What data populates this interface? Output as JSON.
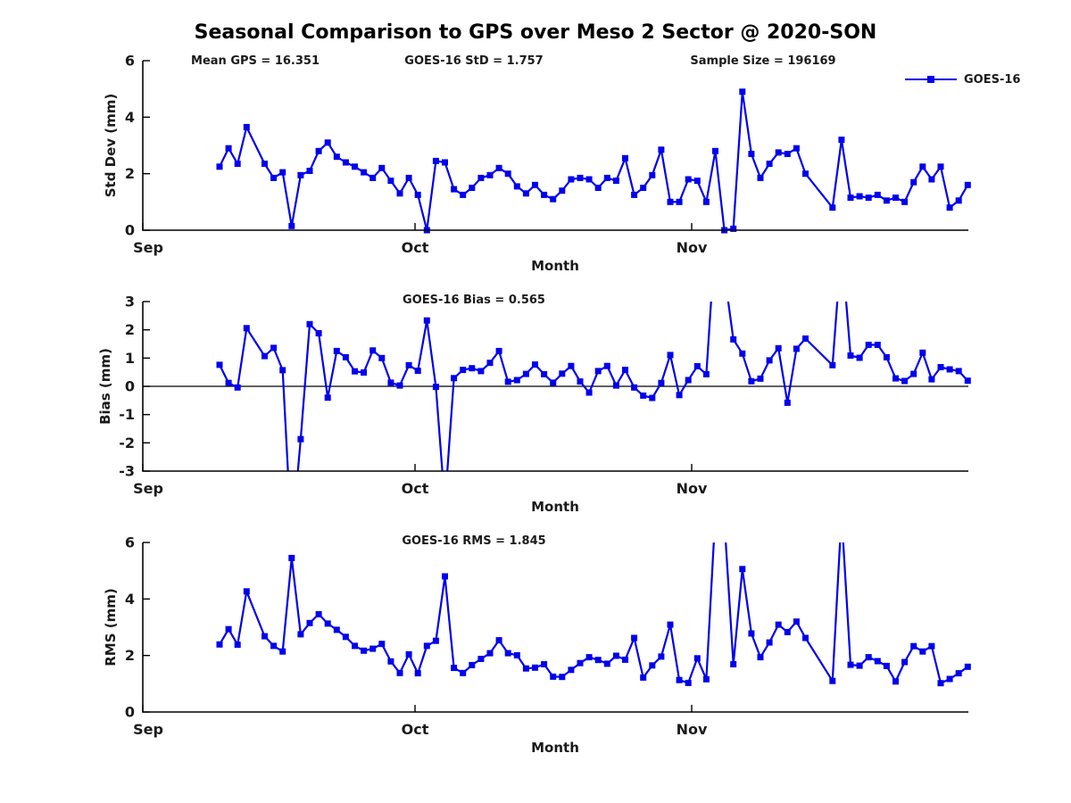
{
  "title": "Seasonal Comparison to GPS over Meso 2 Sector @ 2020-SON",
  "legend": {
    "label": "GOES-16"
  },
  "colors": {
    "line": "#0000EE",
    "axis": "#000000",
    "text": "#1a1a1a"
  },
  "chart_data": {
    "type": "line",
    "series_name": "GOES-16",
    "xlabel": "Month",
    "xticklabels": [
      "Sep",
      "Oct",
      "Nov"
    ],
    "legend_position": "upper-right",
    "grid": false,
    "marker": "square",
    "days_since_sep1": [
      9,
      10,
      11,
      12,
      14,
      15,
      16,
      17,
      18,
      19,
      20,
      21,
      22,
      23,
      24,
      25,
      26,
      27,
      28,
      29,
      30,
      31,
      32,
      33,
      34,
      35,
      36,
      37,
      38,
      39,
      40,
      41,
      42,
      43,
      44,
      45,
      46,
      47,
      48,
      49,
      50,
      51,
      52,
      53,
      54,
      55,
      56,
      57,
      58,
      59,
      60,
      61,
      62,
      63,
      64,
      65,
      66,
      67,
      68,
      69,
      70,
      71,
      72,
      73,
      74,
      77,
      78,
      79,
      80,
      81,
      82,
      83,
      84,
      85,
      86,
      87,
      88,
      89,
      90,
      91,
      92
    ],
    "panels": [
      {
        "name": "std_dev",
        "ylabel": "Std Dev (mm)",
        "ylim": [
          0,
          6
        ],
        "yticks": [
          0,
          2,
          4,
          6
        ],
        "annotations": [
          "Mean GPS = 16.351",
          "GOES-16 StD = 1.757",
          "Sample Size = 196169"
        ],
        "values": [
          2.25,
          2.9,
          2.35,
          3.65,
          2.35,
          1.85,
          2.05,
          0.15,
          1.95,
          2.1,
          2.8,
          3.1,
          2.6,
          2.4,
          2.25,
          2.05,
          1.85,
          2.2,
          1.75,
          1.3,
          1.85,
          1.25,
          0.0,
          2.45,
          2.4,
          1.45,
          1.25,
          1.5,
          1.85,
          1.95,
          2.2,
          2.0,
          1.55,
          1.3,
          1.6,
          1.25,
          1.1,
          1.4,
          1.8,
          1.85,
          1.8,
          1.5,
          1.85,
          1.75,
          2.55,
          1.25,
          1.5,
          1.95,
          2.85,
          1.0,
          1.0,
          1.8,
          1.75,
          1.0,
          2.8,
          0.0,
          0.05,
          4.9,
          2.7,
          1.85,
          2.35,
          2.75,
          2.7,
          2.9,
          2.0,
          0.8,
          3.2,
          1.15,
          1.2,
          1.15,
          1.25,
          1.05,
          1.15,
          1.0,
          1.7,
          2.25,
          1.8,
          2.25,
          0.8,
          1.05,
          1.6
        ]
      },
      {
        "name": "bias",
        "ylabel": "Bias (mm)",
        "ylim": [
          -3,
          3
        ],
        "yticks": [
          3,
          2,
          1,
          0,
          -1,
          -2,
          -3
        ],
        "zero_line": true,
        "annotations": [
          "GOES-16 Bias = 0.565"
        ],
        "values": [
          0.76,
          0.12,
          -0.04,
          2.06,
          1.07,
          1.36,
          0.57,
          -5.5,
          -1.87,
          2.2,
          1.88,
          -0.4,
          1.25,
          1.03,
          0.53,
          0.49,
          1.27,
          1.0,
          0.13,
          0.03,
          0.75,
          0.55,
          2.33,
          -0.02,
          -4.2,
          0.29,
          0.58,
          0.64,
          0.54,
          0.83,
          1.25,
          0.16,
          0.22,
          0.44,
          0.77,
          0.43,
          0.13,
          0.45,
          0.72,
          0.17,
          -0.22,
          0.54,
          0.72,
          0.03,
          0.58,
          -0.04,
          -0.33,
          -0.41,
          0.12,
          1.11,
          -0.31,
          0.22,
          0.71,
          0.43,
          5.3,
          4.0,
          1.66,
          1.16,
          0.18,
          0.27,
          0.92,
          1.35,
          -0.58,
          1.33,
          1.69,
          0.75,
          5.0,
          1.09,
          1.01,
          1.47,
          1.47,
          1.03,
          0.28,
          0.19,
          0.44,
          1.19,
          0.25,
          0.68,
          0.6,
          0.54,
          0.2
        ]
      },
      {
        "name": "rms",
        "ylabel": "RMS (mm)",
        "ylim": [
          0,
          6
        ],
        "yticks": [
          0,
          2,
          4,
          6
        ],
        "annotations": [
          "GOES-16 RMS = 1.845"
        ],
        "values": [
          2.39,
          2.93,
          2.38,
          4.27,
          2.68,
          2.34,
          2.14,
          5.45,
          2.75,
          3.15,
          3.46,
          3.13,
          2.91,
          2.66,
          2.34,
          2.17,
          2.24,
          2.41,
          1.79,
          1.38,
          2.04,
          1.37,
          2.34,
          2.52,
          4.8,
          1.56,
          1.38,
          1.66,
          1.88,
          2.08,
          2.54,
          2.08,
          2.01,
          1.54,
          1.57,
          1.69,
          1.25,
          1.24,
          1.49,
          1.73,
          1.94,
          1.84,
          1.71,
          1.99,
          1.85,
          2.62,
          1.22,
          1.65,
          1.96,
          3.09,
          1.13,
          1.03,
          1.9,
          1.16,
          7.0,
          6.8,
          1.69,
          5.06,
          2.78,
          1.94,
          2.46,
          3.09,
          2.83,
          3.2,
          2.62,
          1.1,
          7.0,
          1.67,
          1.64,
          1.94,
          1.8,
          1.63,
          1.08,
          1.77,
          2.33,
          2.14,
          2.33,
          1.02,
          1.17,
          1.37,
          1.6
        ]
      }
    ]
  }
}
